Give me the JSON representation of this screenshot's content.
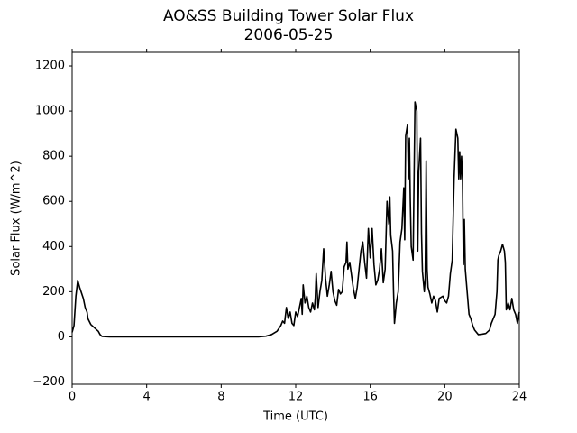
{
  "chart_data": {
    "type": "line",
    "title": "AO&SS Building Tower Solar Flux",
    "subtitle": "2006-05-25",
    "xlabel": "Time (UTC)",
    "ylabel": "Solar Flux (W/m^2)",
    "xlim": [
      0,
      24
    ],
    "xticks": [
      0,
      4,
      8,
      12,
      16,
      20,
      24
    ],
    "ylim": [
      -210,
      1260
    ],
    "yticks": [
      {
        "value": -200,
        "label": "−200"
      },
      0,
      200,
      400,
      600,
      800,
      1000,
      1200
    ],
    "grid": false,
    "series": [
      {
        "name": "Solar Flux",
        "color": "#000000",
        "x": [
          0,
          0.1,
          0.2,
          0.3,
          0.4,
          0.6,
          0.7,
          0.8,
          0.85,
          1.0,
          1.2,
          1.4,
          1.5,
          1.6,
          2,
          4,
          8,
          10,
          10.4,
          10.7,
          11,
          11.2,
          11.3,
          11.4,
          11.5,
          11.6,
          11.7,
          11.8,
          11.9,
          12.0,
          12.1,
          12.2,
          12.3,
          12.35,
          12.4,
          12.5,
          12.6,
          12.7,
          12.8,
          12.9,
          13.0,
          13.05,
          13.1,
          13.2,
          13.3,
          13.4,
          13.5,
          13.6,
          13.7,
          13.8,
          13.9,
          14.0,
          14.1,
          14.2,
          14.3,
          14.4,
          14.5,
          14.6,
          14.7,
          14.75,
          14.8,
          14.9,
          15.0,
          15.1,
          15.2,
          15.3,
          15.4,
          15.5,
          15.6,
          15.7,
          15.8,
          15.9,
          16.0,
          16.1,
          16.2,
          16.3,
          16.4,
          16.5,
          16.6,
          16.7,
          16.8,
          16.9,
          17.0,
          17.05,
          17.1,
          17.2,
          17.25,
          17.3,
          17.4,
          17.5,
          17.6,
          17.7,
          17.8,
          17.85,
          17.9,
          18.0,
          18.05,
          18.1,
          18.15,
          18.2,
          18.3,
          18.4,
          18.5,
          18.55,
          18.6,
          18.7,
          18.75,
          18.8,
          18.9,
          18.95,
          19.0,
          19.05,
          19.1,
          19.2,
          19.3,
          19.4,
          19.5,
          19.6,
          19.7,
          19.9,
          20.0,
          20.1,
          20.2,
          20.3,
          20.4,
          20.5,
          20.6,
          20.7,
          20.75,
          20.8,
          20.85,
          20.9,
          20.95,
          21.0,
          21.05,
          21.1,
          21.2,
          21.3,
          21.4,
          21.5,
          21.6,
          21.8,
          22.0,
          22.2,
          22.4,
          22.5,
          22.7,
          22.8,
          22.85,
          22.9,
          23.0,
          23.1,
          23.2,
          23.25,
          23.3,
          23.4,
          23.5,
          23.6,
          23.7,
          23.8,
          23.9,
          24.0
        ],
        "values": [
          20,
          50,
          180,
          250,
          220,
          170,
          130,
          110,
          80,
          55,
          40,
          25,
          10,
          2,
          0,
          0,
          0,
          0,
          3,
          10,
          25,
          50,
          70,
          60,
          130,
          80,
          110,
          60,
          50,
          110,
          90,
          130,
          170,
          100,
          230,
          150,
          180,
          130,
          110,
          150,
          120,
          170,
          280,
          130,
          200,
          250,
          390,
          260,
          180,
          230,
          290,
          200,
          160,
          140,
          210,
          190,
          200,
          310,
          330,
          420,
          300,
          330,
          270,
          210,
          170,
          220,
          300,
          380,
          420,
          330,
          260,
          480,
          350,
          480,
          320,
          230,
          250,
          300,
          390,
          240,
          300,
          600,
          500,
          620,
          450,
          380,
          200,
          60,
          150,
          200,
          420,
          480,
          660,
          430,
          890,
          940,
          700,
          880,
          600,
          400,
          340,
          1040,
          1000,
          380,
          730,
          880,
          460,
          290,
          200,
          260,
          780,
          300,
          220,
          190,
          150,
          180,
          160,
          110,
          170,
          180,
          160,
          150,
          180,
          280,
          340,
          700,
          920,
          880,
          700,
          820,
          700,
          800,
          700,
          320,
          520,
          300,
          200,
          100,
          80,
          50,
          30,
          10,
          12,
          15,
          30,
          60,
          100,
          200,
          340,
          360,
          380,
          410,
          380,
          330,
          120,
          150,
          120,
          170,
          120,
          100,
          60,
          110
        ]
      }
    ]
  }
}
